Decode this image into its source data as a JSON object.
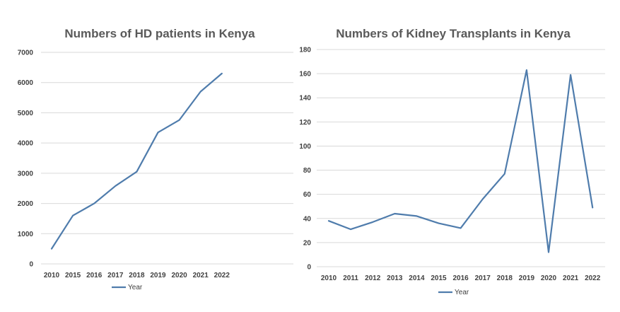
{
  "chart_data": [
    {
      "type": "line",
      "title": "Numbers of HD patients in Kenya",
      "categories": [
        "2010",
        "2015",
        "2016",
        "2017",
        "2018",
        "2019",
        "2020",
        "2021",
        "2022"
      ],
      "series": [
        {
          "name": "Year",
          "values": [
            500,
            1600,
            2000,
            2580,
            3050,
            4350,
            4760,
            5700,
            6300
          ]
        }
      ],
      "yticks": [
        "0",
        "1000",
        "2000",
        "3000",
        "4000",
        "5000",
        "6000",
        "7000"
      ],
      "ylim": [
        0,
        7000
      ],
      "xlabel": "",
      "ylabel": "",
      "grid": true,
      "legend": "bottom-left",
      "color": "#4f7cac"
    },
    {
      "type": "line",
      "title": "Numbers of Kidney Transplants in Kenya",
      "categories": [
        "2010",
        "2011",
        "2012",
        "2013",
        "2014",
        "2015",
        "2016",
        "2017",
        "2018",
        "2019",
        "2020",
        "2021",
        "2022"
      ],
      "series": [
        {
          "name": "Year",
          "values": [
            38,
            31,
            37,
            44,
            42,
            36,
            32,
            56,
            77,
            163,
            12,
            159,
            49
          ]
        }
      ],
      "yticks": [
        "0",
        "20",
        "40",
        "60",
        "80",
        "100",
        "120",
        "140",
        "160",
        "180"
      ],
      "ylim": [
        0,
        180
      ],
      "xlabel": "",
      "ylabel": "",
      "grid": true,
      "legend": "bottom",
      "color": "#4f7cac"
    }
  ]
}
